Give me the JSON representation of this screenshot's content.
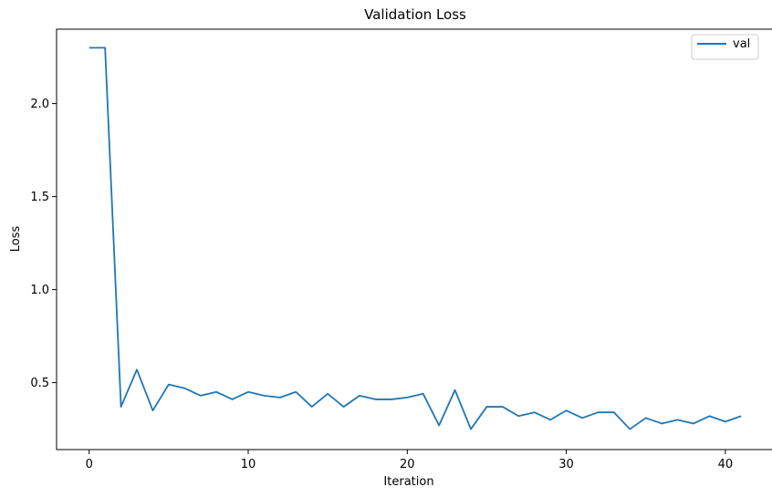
{
  "chart_data": {
    "type": "line",
    "title": "Validation Loss",
    "xlabel": "Iteration",
    "ylabel": "Loss",
    "xlim": [
      -2.05,
      43.05
    ],
    "ylim": [
      0.14,
      2.4
    ],
    "xticks": [
      0,
      10,
      20,
      30,
      40
    ],
    "yticks": [
      0.5,
      1.0,
      1.5,
      2.0
    ],
    "xtick_labels": [
      "0",
      "10",
      "20",
      "30",
      "40"
    ],
    "ytick_labels": [
      "0.5",
      "1.0",
      "1.5",
      "2.0"
    ],
    "grid": false,
    "legend": {
      "position": "top-right"
    },
    "series": [
      {
        "name": "val",
        "color": "#1f77b4",
        "x": [
          0,
          1,
          2,
          3,
          4,
          5,
          6,
          7,
          8,
          9,
          10,
          11,
          12,
          13,
          14,
          15,
          16,
          17,
          18,
          19,
          20,
          21,
          22,
          23,
          24,
          25,
          26,
          27,
          28,
          29,
          30,
          31,
          32,
          33,
          34,
          35,
          36,
          37,
          38,
          39,
          40,
          41
        ],
        "values": [
          2.3,
          2.3,
          0.37,
          0.57,
          0.35,
          0.49,
          0.47,
          0.43,
          0.45,
          0.41,
          0.45,
          0.43,
          0.42,
          0.45,
          0.37,
          0.44,
          0.37,
          0.43,
          0.41,
          0.41,
          0.42,
          0.44,
          0.27,
          0.46,
          0.25,
          0.37,
          0.37,
          0.32,
          0.34,
          0.3,
          0.35,
          0.31,
          0.34,
          0.34,
          0.25,
          0.31,
          0.28,
          0.3,
          0.28,
          0.32,
          0.29,
          0.32
        ]
      }
    ]
  }
}
